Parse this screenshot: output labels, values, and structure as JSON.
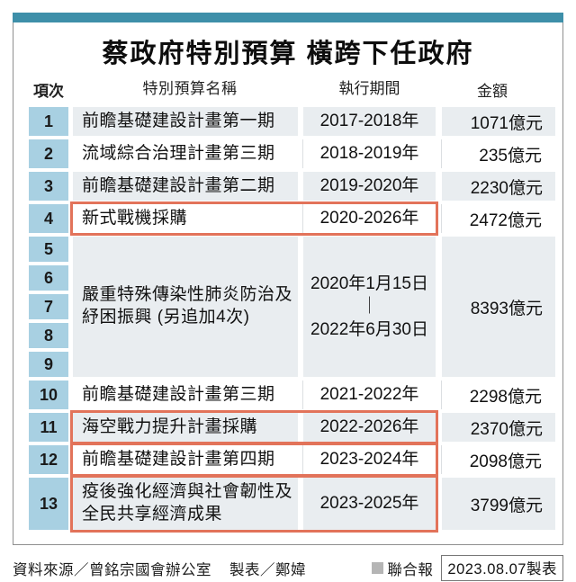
{
  "title": "蔡政府特別預算 橫跨下任政府",
  "chart_data": {
    "type": "table",
    "title": "蔡政府特別預算 橫跨下任政府",
    "columns": [
      "項次",
      "特別預算名稱",
      "執行期間",
      "金額"
    ],
    "rows": [
      {
        "index": "1",
        "name": "前瞻基礎建設計畫第一期",
        "period": "2017-2018年",
        "amount": "1071億元",
        "shade": "gray",
        "highlight": false
      },
      {
        "index": "2",
        "name": "流域綜合治理計畫第三期",
        "period": "2018-2019年",
        "amount": "235億元",
        "shade": "white",
        "highlight": false
      },
      {
        "index": "3",
        "name": "前瞻基礎建設計畫第二期",
        "period": "2019-2020年",
        "amount": "2230億元",
        "shade": "gray",
        "highlight": false
      },
      {
        "index": "4",
        "name": "新式戰機採購",
        "period": "2020-2026年",
        "amount": "2472億元",
        "shade": "white",
        "highlight": true
      },
      {
        "type": "merged",
        "indexes": [
          "5",
          "6",
          "7",
          "8",
          "9"
        ],
        "name": "嚴重特殊傳染性肺炎防治及紓困振興 (另追加4次)",
        "period_lines": [
          "2020年1月15日",
          "｜",
          "2022年6月30日"
        ],
        "amount": "8393億元",
        "shade": "gray",
        "highlight": false
      },
      {
        "index": "10",
        "name": "前瞻基礎建設計畫第三期",
        "period": "2021-2022年",
        "amount": "2298億元",
        "shade": "white",
        "highlight": false
      },
      {
        "index": "11",
        "name": "海空戰力提升計畫採購",
        "period": "2022-2026年",
        "amount": "2370億元",
        "shade": "gray",
        "highlight": true
      },
      {
        "index": "12",
        "name": "前瞻基礎建設計畫第四期",
        "period": "2023-2024年",
        "amount": "2098億元",
        "shade": "white",
        "highlight": true
      },
      {
        "index": "13",
        "name": "疫後強化經濟與社會韌性及全民共享經濟成果",
        "period": "2023-2025年",
        "amount": "3799億元",
        "shade": "gray",
        "highlight": true,
        "tall": true
      }
    ]
  },
  "footer": {
    "source": "資料來源／曾銘宗國會辦公室",
    "credit": "製表／鄭媁",
    "brand": "聯合報",
    "date_note": "2023.08.07製表"
  },
  "colors": {
    "topbar": "#3E8FA9",
    "index_cell": "#A8D0E2",
    "row_gray": "#E9EDF0",
    "highlight_border": "#E2735A",
    "brand_square": "#B5B5B5"
  }
}
